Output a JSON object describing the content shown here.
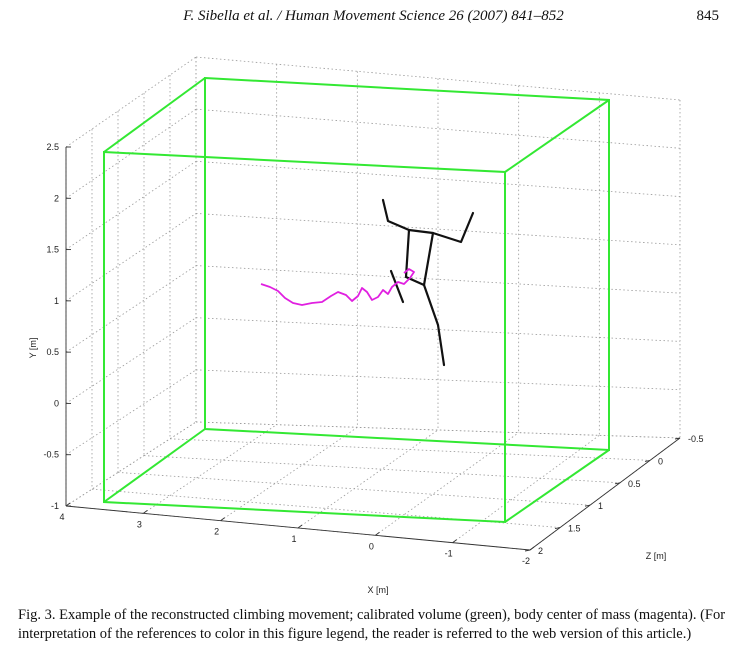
{
  "header": {
    "running_head": "F. Sibella et al. / Human Movement Science 26 (2007) 841–852",
    "page_number": "845"
  },
  "caption": "Fig. 3. Example of the reconstructed climbing movement; calibrated volume (green), body center of mass (magenta). (For interpretation of the references to color in this figure legend, the reader is referred to the web version of this article.)",
  "colors": {
    "volume": "#33e833",
    "com_path": "#e020e0",
    "skeleton": "#111111",
    "grid": "#9a9a9a"
  },
  "chart_data": {
    "type": "3d-line",
    "title": "",
    "axes": {
      "x": {
        "label": "X [m]",
        "ticks": [
          "4",
          "3",
          "2",
          "1",
          "0",
          "-1",
          "-2"
        ]
      },
      "y": {
        "label": "Y [m]",
        "ticks": [
          "2.5",
          "2",
          "1.5",
          "1",
          "0.5",
          "0",
          "-0.5",
          "-1"
        ]
      },
      "z": {
        "label": "Z [m]",
        "ticks": [
          "-0.5",
          "0",
          "0.5",
          "1",
          "1.5",
          "2"
        ]
      }
    },
    "series": [
      {
        "name": "calibrated volume",
        "color": "#33e833"
      },
      {
        "name": "body center of mass",
        "color": "#e020e0"
      }
    ],
    "grid": true
  }
}
